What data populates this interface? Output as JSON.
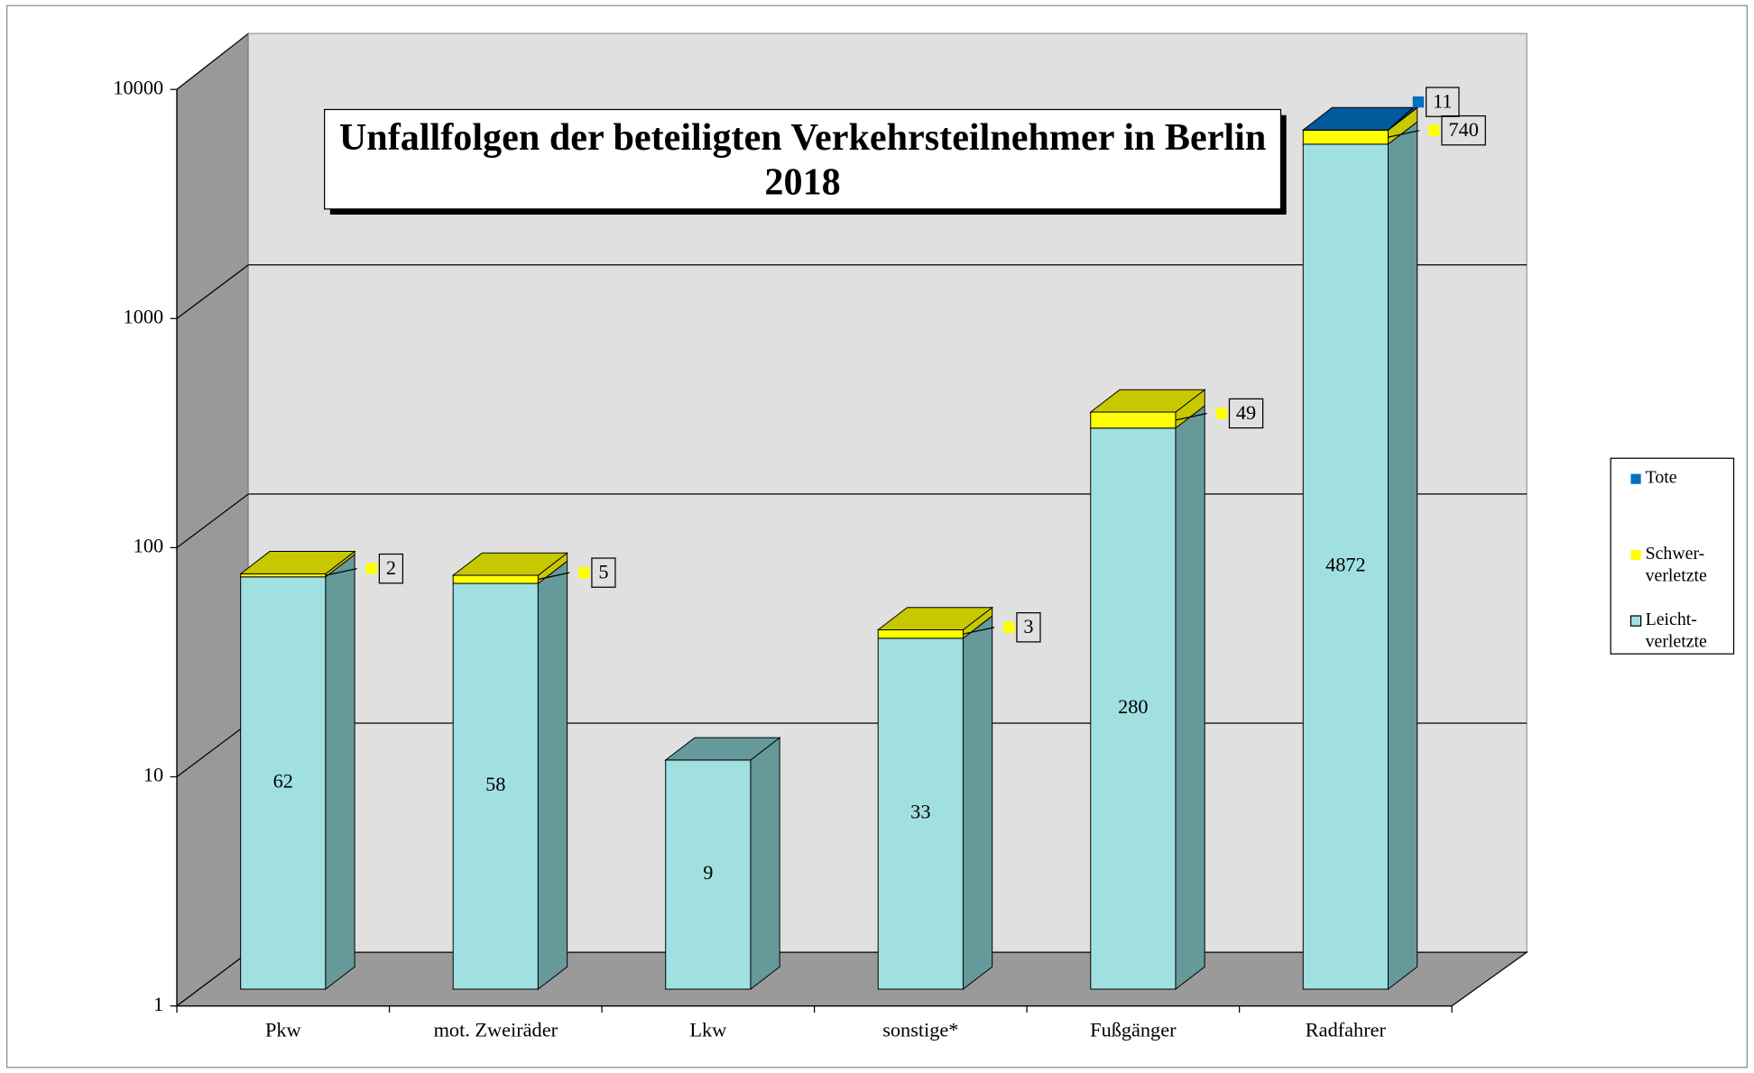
{
  "chart_data": {
    "type": "bar3d_stacked",
    "title": "Unfallfolgen der beteiligten Verkehrsteilnehmer in Berlin 2018",
    "categories": [
      "Pkw",
      "mot. Zweiräder",
      "Lkw",
      "sonstige*",
      "Fußgänger",
      "Radfahrer"
    ],
    "series": [
      {
        "name": "Leicht-verletzte",
        "color": "#a0e0e0",
        "values": [
          62,
          58,
          9,
          33,
          280,
          4872
        ]
      },
      {
        "name": "Schwer-verletzte",
        "color": "#ffff00",
        "values": [
          2,
          5,
          null,
          3,
          49,
          740
        ]
      },
      {
        "name": "Tote",
        "color": "#0070c0",
        "values": [
          null,
          null,
          null,
          null,
          null,
          11
        ]
      }
    ],
    "ylim": [
      1,
      10000
    ],
    "yticks": [
      1,
      10,
      100,
      1000,
      10000
    ],
    "log": true,
    "grid": true,
    "legend": "right"
  }
}
